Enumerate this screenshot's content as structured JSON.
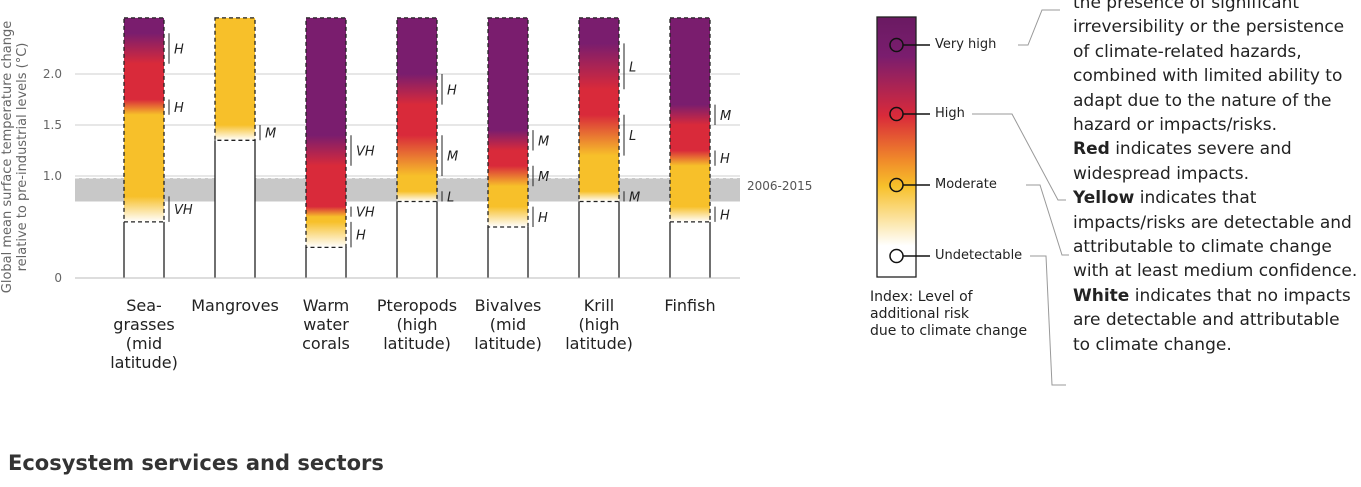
{
  "chart_data": {
    "type": "heatmap",
    "title": "",
    "ylabel": "Global mean surface temperature change relative to pre-industrial levels (°C)",
    "yticks": [
      "0",
      "1.0",
      "1.5",
      "2.0"
    ],
    "ylim": [
      0,
      2.55
    ],
    "reference_band": {
      "label": "2006-2015",
      "low": 0.75,
      "high": 0.98
    },
    "risk_scale": [
      "Undetectable",
      "Moderate",
      "High",
      "Very high"
    ],
    "categories": [
      {
        "name": "Sea-\ngrasses\n(mid\nlatitude)",
        "transitions": [
          {
            "from": "Undetectable",
            "to": "Moderate",
            "start": 0.55,
            "end": 0.8,
            "confidence": "VH"
          },
          {
            "from": "Moderate",
            "to": "High",
            "start": 1.6,
            "end": 1.75,
            "confidence": "H"
          },
          {
            "from": "High",
            "to": "Very high",
            "start": 2.1,
            "end": 2.4,
            "confidence": "H"
          }
        ]
      },
      {
        "name": "Mangroves",
        "transitions": [
          {
            "from": "Undetectable",
            "to": "Moderate",
            "start": 1.35,
            "end": 1.5,
            "confidence": "M"
          }
        ]
      },
      {
        "name": "Warm\nwater\ncorals",
        "transitions": [
          {
            "from": "Undetectable",
            "to": "Moderate",
            "start": 0.3,
            "end": 0.55,
            "confidence": "H"
          },
          {
            "from": "Moderate",
            "to": "High",
            "start": 0.6,
            "end": 0.7,
            "confidence": "VH"
          },
          {
            "from": "High",
            "to": "Very high",
            "start": 1.1,
            "end": 1.4,
            "confidence": "VH"
          }
        ]
      },
      {
        "name": "Pteropods\n(high\nlatitude)",
        "transitions": [
          {
            "from": "Undetectable",
            "to": "Moderate",
            "start": 0.75,
            "end": 0.85,
            "confidence": "L"
          },
          {
            "from": "Moderate",
            "to": "High",
            "start": 1.0,
            "end": 1.4,
            "confidence": "M"
          },
          {
            "from": "High",
            "to": "Very high",
            "start": 1.7,
            "end": 2.0,
            "confidence": "H"
          }
        ]
      },
      {
        "name": "Bivalves\n(mid\nlatitude)",
        "transitions": [
          {
            "from": "Undetectable",
            "to": "Moderate",
            "start": 0.5,
            "end": 0.7,
            "confidence": "H"
          },
          {
            "from": "Moderate",
            "to": "High",
            "start": 0.9,
            "end": 1.1,
            "confidence": "M"
          },
          {
            "from": "High",
            "to": "Very high",
            "start": 1.25,
            "end": 1.45,
            "confidence": "M"
          }
        ]
      },
      {
        "name": "Krill\n(high\nlatitude)",
        "transitions": [
          {
            "from": "Undetectable",
            "to": "Moderate",
            "start": 0.75,
            "end": 0.85,
            "confidence": "M"
          },
          {
            "from": "Moderate",
            "to": "High",
            "start": 1.2,
            "end": 1.6,
            "confidence": "L"
          },
          {
            "from": "High",
            "to": "Very high",
            "start": 1.85,
            "end": 2.3,
            "confidence": "L"
          }
        ]
      },
      {
        "name": "Finfish",
        "transitions": [
          {
            "from": "Undetectable",
            "to": "Moderate",
            "start": 0.55,
            "end": 0.7,
            "confidence": "H"
          },
          {
            "from": "Moderate",
            "to": "High",
            "start": 1.1,
            "end": 1.25,
            "confidence": "H"
          },
          {
            "from": "High",
            "to": "Very high",
            "start": 1.5,
            "end": 1.7,
            "confidence": "M"
          }
        ]
      }
    ],
    "colors": {
      "undetectable": "#ffffff",
      "moderate": "#f7c02a",
      "high": "#d92a3a",
      "very_high": "#7a1d6e",
      "band": "#c8c8c8",
      "axis": "#555555"
    }
  },
  "legend": {
    "title": "Index: Level of\nadditional risk\ndue to climate change",
    "items": [
      "Very high",
      "High",
      "Moderate",
      "Undetectable"
    ]
  },
  "explanation": {
    "text_top": "the presence of significant irreversibility or the persistence of climate-related hazards, combined with limited ability to adapt due to the nature of the hazard or impacts/risks.",
    "red_word": "Red",
    "red_text": " indicates severe and widespread impacts.",
    "yellow_word": "Yellow",
    "yellow_text": " indicates that impacts/risks are detectable and attributable to climate change with at least medium confidence.",
    "white_word": "White",
    "white_text": " indicates that no impacts are detectable and attributable to climate change."
  },
  "section_title": "Ecosystem services and sectors"
}
